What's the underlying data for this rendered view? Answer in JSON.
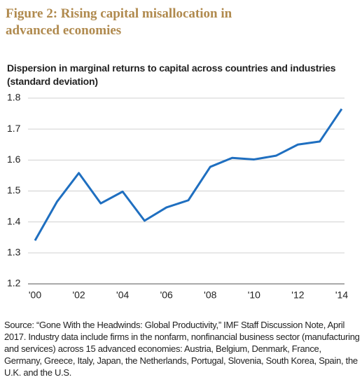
{
  "chart_data": {
    "type": "line",
    "title": "Figure 2: Rising capital misallocation in advanced economies",
    "subtitle": "Dispersion in marginal returns to capital across countries and industries (standard deviation)",
    "categories": [
      "'00",
      null,
      "'02",
      null,
      "'04",
      null,
      "'06",
      null,
      "'08",
      null,
      "'10",
      null,
      "'12",
      null,
      "'14"
    ],
    "series": [
      {
        "name": "Dispersion",
        "color": "#1f6fc0",
        "values": [
          1.34,
          1.465,
          1.558,
          1.46,
          1.498,
          1.404,
          1.447,
          1.47,
          1.578,
          1.607,
          1.602,
          1.614,
          1.65,
          1.66,
          1.765
        ]
      }
    ],
    "ylim": [
      1.2,
      1.8
    ],
    "yticks": [
      1.2,
      1.3,
      1.4,
      1.5,
      1.6,
      1.7,
      1.8
    ],
    "grid": true,
    "source": "Source: “Gone With the Headwinds: Global Productivity,” IMF Staff Discussion Note, April 2017. Industry data include firms in the nonfarm, nonfinancial business sector (manufacturing and services) across 15 advanced economies: Austria, Belgium, Denmark, France, Germany, Greece, Italy, Japan, the Netherlands, Portugal, Slovenia, South Korea, Spain, the U.K. and the U.S."
  }
}
